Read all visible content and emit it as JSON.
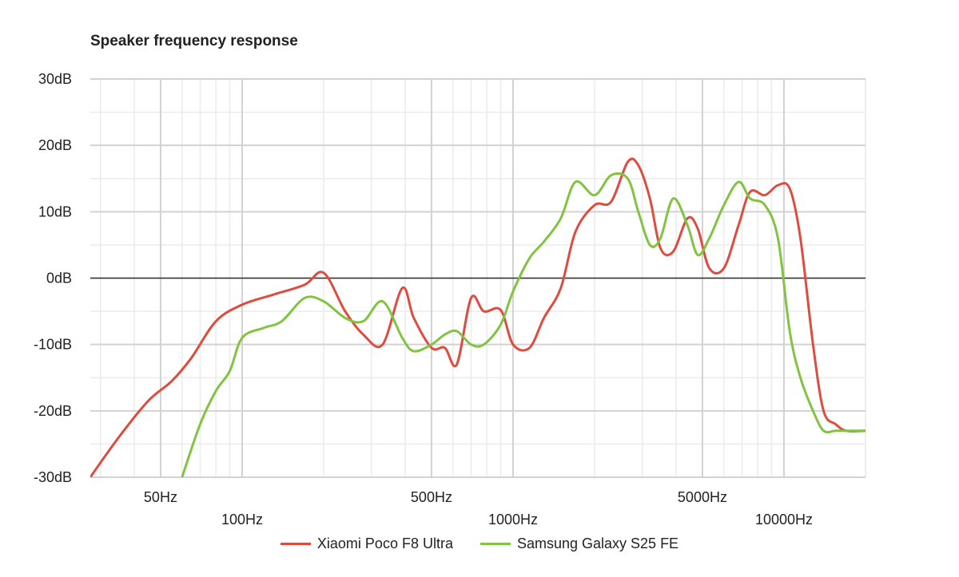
{
  "chart_data": {
    "type": "line",
    "title": "Speaker frequency response",
    "xlabel": "",
    "ylabel": "",
    "xscale": "log",
    "xlim": [
      27,
      20000
    ],
    "ylim": [
      -30,
      30
    ],
    "grid": true,
    "legend_position": "bottom",
    "y_ticks": [
      "30dB",
      "20dB",
      "10dB",
      "0dB",
      "-10dB",
      "-20dB",
      "-30dB"
    ],
    "y_tick_values": [
      30,
      20,
      10,
      0,
      -10,
      -20,
      -30
    ],
    "x_ticks_row1": [
      "50Hz",
      "500Hz",
      "5000Hz"
    ],
    "x_ticks_row2": [
      "100Hz",
      "1000Hz",
      "10000Hz"
    ],
    "x_tick_values_row1": [
      50,
      500,
      5000
    ],
    "x_tick_values_row2": [
      100,
      1000,
      10000
    ],
    "series": [
      {
        "name": "Xiaomi Poco F8 Ultra",
        "color": "#e04b3f",
        "x": [
          27.5,
          35,
          45,
          55,
          65,
          80,
          100,
          130,
          170,
          200,
          240,
          280,
          330,
          390,
          430,
          500,
          560,
          620,
          700,
          780,
          900,
          1000,
          1150,
          1300,
          1500,
          1700,
          2000,
          2300,
          2650,
          2900,
          3200,
          3500,
          3900,
          4400,
          4800,
          5300,
          6000,
          6800,
          7500,
          8500,
          9500,
          10500,
          11500,
          12800,
          14000,
          15500,
          17000,
          20000
        ],
        "y": [
          -30,
          -24,
          -18.5,
          -15.5,
          -12,
          -6.5,
          -4,
          -2.5,
          -1,
          0.8,
          -5,
          -8.5,
          -10,
          -1.5,
          -6,
          -10.5,
          -10.5,
          -13,
          -3,
          -5,
          -4.8,
          -10,
          -10.5,
          -6,
          -1.5,
          7,
          11,
          11.5,
          17.5,
          17,
          12,
          4.5,
          4,
          9,
          7.5,
          1.5,
          1.5,
          8,
          13,
          12.5,
          14,
          13.5,
          6,
          -10,
          -20,
          -22,
          -23,
          -23
        ]
      },
      {
        "name": "Samsung Galaxy S25 FE",
        "color": "#82c341",
        "x": [
          60,
          70,
          80,
          90,
          100,
          120,
          140,
          170,
          200,
          240,
          280,
          330,
          390,
          430,
          500,
          560,
          620,
          700,
          780,
          900,
          1000,
          1150,
          1300,
          1500,
          1700,
          2000,
          2300,
          2650,
          2900,
          3200,
          3500,
          3900,
          4400,
          4800,
          5300,
          6000,
          6800,
          7500,
          8500,
          9500,
          10500,
          11500,
          12800,
          14000,
          15500,
          17000,
          20000
        ],
        "y": [
          -30,
          -22,
          -17,
          -14,
          -9,
          -7.5,
          -6.5,
          -3,
          -3.5,
          -6,
          -6.5,
          -3.5,
          -9,
          -11,
          -10,
          -8.5,
          -8,
          -10,
          -10,
          -7,
          -2,
          3,
          5.5,
          9,
          14.5,
          12.5,
          15.5,
          15,
          10,
          5,
          6,
          12,
          8,
          3.5,
          6,
          11,
          14.5,
          12,
          11,
          6,
          -8,
          -15,
          -20,
          -23,
          -23,
          -23,
          -23
        ]
      }
    ]
  },
  "legend": {
    "items": [
      {
        "label": "Xiaomi Poco F8 Ultra",
        "color": "#e04b3f"
      },
      {
        "label": "Samsung Galaxy S25 FE",
        "color": "#82c341"
      }
    ]
  }
}
